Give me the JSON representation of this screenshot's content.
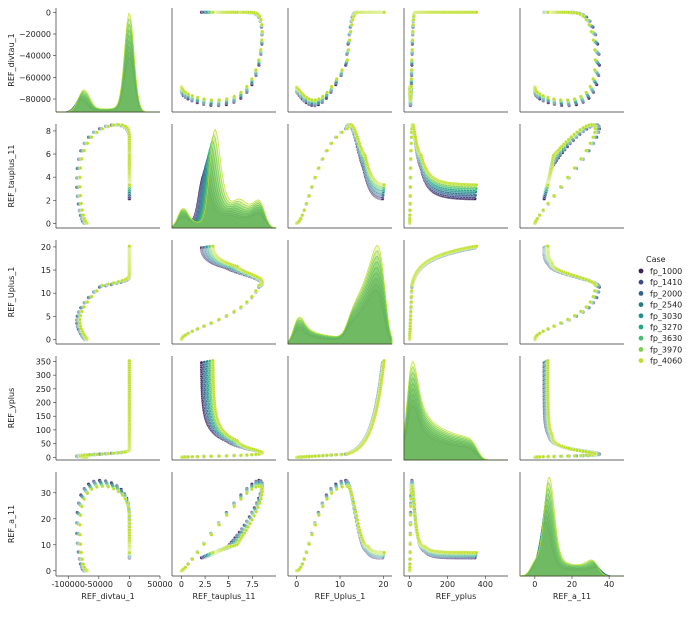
{
  "chart_data": {
    "type": "scatter",
    "kind": "pairplot",
    "variables": [
      "REF_divtau_1",
      "REF_tauplus_11",
      "REF_Uplus_1",
      "REF_yplus",
      "REF_a_11"
    ],
    "ranges": {
      "REF_divtau_1": [
        -120000,
        50000
      ],
      "REF_tauplus_11": [
        -1,
        10
      ],
      "REF_Uplus_1": [
        -2,
        22
      ],
      "REF_yplus": [
        -30,
        520
      ],
      "REF_a_11": [
        -8,
        48
      ]
    },
    "ticks": {
      "REF_divtau_1": [
        {
          "v": -100000,
          "t": "-100000"
        },
        {
          "v": -50000,
          "t": "-50000"
        },
        {
          "v": 0,
          "t": "0"
        },
        {
          "v": 50000,
          "t": "50000"
        }
      ],
      "REF_tauplus_11": [
        {
          "v": 0,
          "t": "0"
        },
        {
          "v": 2.5,
          "t": "2.5"
        },
        {
          "v": 5,
          "t": "5"
        },
        {
          "v": 7.5,
          "t": "7.5"
        }
      ],
      "REF_Uplus_1": [
        {
          "v": 0,
          "t": "0"
        },
        {
          "v": 10,
          "t": "10"
        },
        {
          "v": 20,
          "t": "20"
        }
      ],
      "REF_yplus": [
        {
          "v": 0,
          "t": "0"
        },
        {
          "v": 200,
          "t": "200"
        },
        {
          "v": 400,
          "t": "400"
        }
      ],
      "REF_a_11": [
        {
          "v": 0,
          "t": "0"
        },
        {
          "v": 20,
          "t": "20"
        },
        {
          "v": 40,
          "t": "40"
        }
      ]
    },
    "y_ranges": {
      "REF_divtau_1": [
        -92000,
        4000
      ],
      "REF_tauplus_11": [
        -0.4,
        8.6
      ],
      "REF_Uplus_1": [
        -1,
        21.5
      ],
      "REF_yplus": [
        -10,
        370
      ],
      "REF_a_11": [
        -2,
        38
      ]
    },
    "y_ticks": {
      "REF_divtau_1": [
        {
          "v": 0,
          "t": "0"
        },
        {
          "v": -20000,
          "t": "−20000"
        },
        {
          "v": -40000,
          "t": "−40000"
        },
        {
          "v": -60000,
          "t": "−60000"
        },
        {
          "v": -80000,
          "t": "−80000"
        }
      ],
      "REF_tauplus_11": [
        {
          "v": 0,
          "t": "0"
        },
        {
          "v": 2,
          "t": "2"
        },
        {
          "v": 4,
          "t": "4"
        },
        {
          "v": 6,
          "t": "6"
        },
        {
          "v": 8,
          "t": "8"
        }
      ],
      "REF_Uplus_1": [
        {
          "v": 0,
          "t": "0"
        },
        {
          "v": 5,
          "t": "5"
        },
        {
          "v": 10,
          "t": "10"
        },
        {
          "v": 15,
          "t": "15"
        },
        {
          "v": 20,
          "t": "20"
        }
      ],
      "REF_yplus": [
        {
          "v": 0,
          "t": "0"
        },
        {
          "v": 50,
          "t": "50"
        },
        {
          "v": 100,
          "t": "100"
        },
        {
          "v": 150,
          "t": "150"
        },
        {
          "v": 200,
          "t": "200"
        },
        {
          "v": 250,
          "t": "250"
        },
        {
          "v": 300,
          "t": "300"
        },
        {
          "v": 350,
          "t": "350"
        }
      ],
      "REF_a_11": [
        {
          "v": 0,
          "t": "0"
        },
        {
          "v": 10,
          "t": "10"
        },
        {
          "v": 20,
          "t": "20"
        },
        {
          "v": 30,
          "t": "30"
        }
      ]
    },
    "legend": {
      "title": "Case",
      "placement": "right",
      "entries": [
        {
          "name": "fp_1000",
          "color": "#3b1f5e"
        },
        {
          "name": "fp_1410",
          "color": "#3e4b8a"
        },
        {
          "name": "fp_2000",
          "color": "#33638d"
        },
        {
          "name": "fp_2540",
          "color": "#2a788e"
        },
        {
          "name": "fp_3030",
          "color": "#21918c"
        },
        {
          "name": "fp_3270",
          "color": "#22a884"
        },
        {
          "name": "fp_3630",
          "color": "#44bf70"
        },
        {
          "name": "fp_3970",
          "color": "#7ad151"
        },
        {
          "name": "fp_4060",
          "color": "#bddf26"
        }
      ]
    },
    "diagonal": "kde",
    "grid": false
  }
}
